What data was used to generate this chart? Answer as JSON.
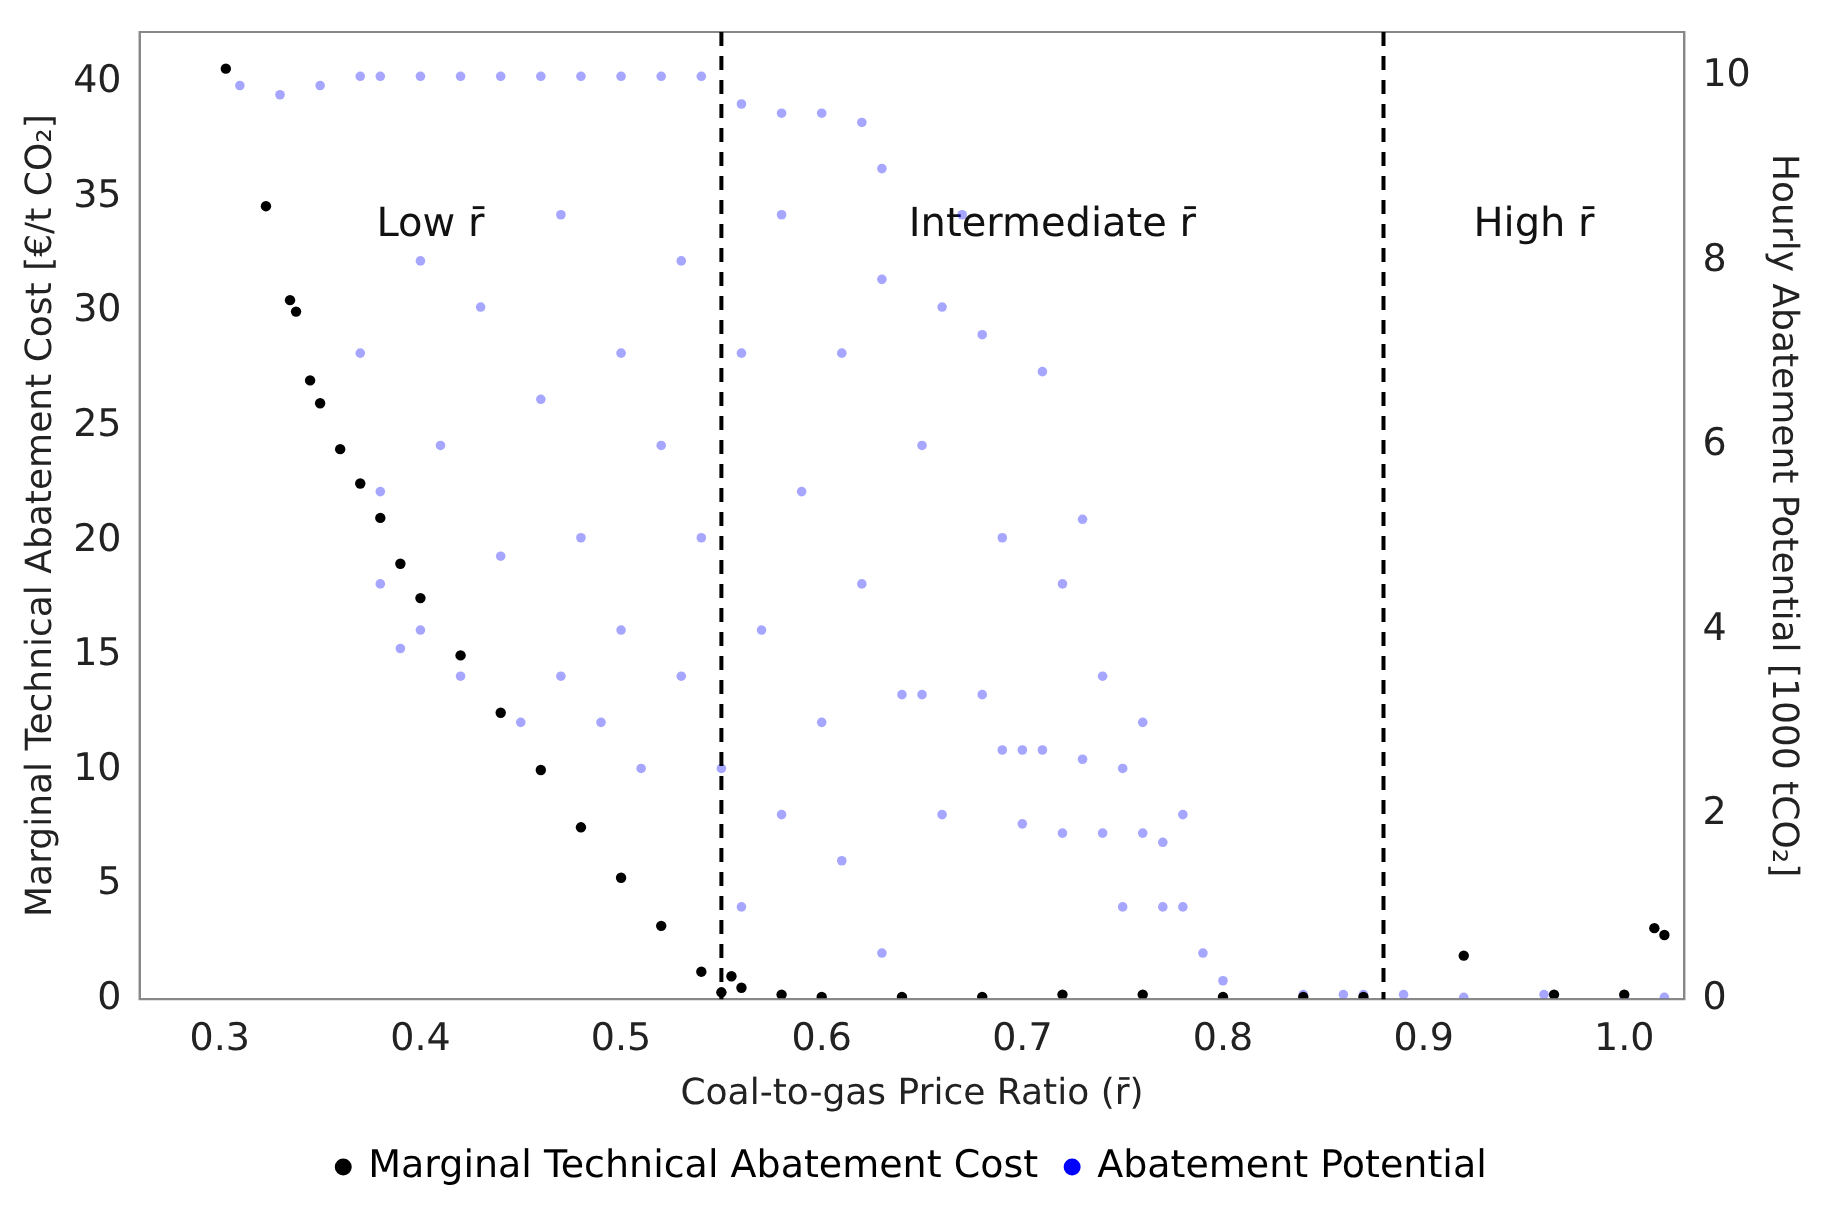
{
  "chart_data": {
    "type": "scatter",
    "xlabel": "Coal-to-gas Price Ratio (r̄)",
    "ylabel": "Marginal Technical Abatement Cost [€/t CO₂]",
    "y2label": "Hourly Abatement Potential [1000 tCO₂]",
    "xlim": [
      0.26,
      1.03
    ],
    "xticks": [
      {
        "value": 0.3,
        "label": "0.3"
      },
      {
        "value": 0.4,
        "label": "0.4"
      },
      {
        "value": 0.5,
        "label": "0.5"
      },
      {
        "value": 0.6,
        "label": "0.6"
      },
      {
        "value": 0.7,
        "label": "0.7"
      },
      {
        "value": 0.8,
        "label": "0.8"
      },
      {
        "value": 0.9,
        "label": "0.9"
      },
      {
        "value": 1.0,
        "label": "1.0"
      }
    ],
    "ylim": [
      0,
      42.2
    ],
    "yticks": [
      0,
      5,
      10,
      15,
      20,
      25,
      30,
      35,
      40
    ],
    "y2lim": [
      0,
      10.48
    ],
    "y2ticks": [
      0,
      2,
      4,
      6,
      8,
      10
    ],
    "grid": false,
    "legend": "bottom",
    "marker": "circle",
    "ref_lines": [
      {
        "axis": "x",
        "value": 0.55,
        "color": "#000000",
        "line_style": "dashed"
      },
      {
        "axis": "x",
        "value": 0.88,
        "color": "#000000",
        "line_style": "dashed"
      }
    ],
    "annotations": [
      "Low r̄",
      "Intermediate r̄",
      "High r̄"
    ],
    "series": [
      {
        "name": "Marginal Technical Abatement Cost",
        "color": "#000000",
        "x": [
          0.303,
          0.323,
          0.335,
          0.338,
          0.345,
          0.35,
          0.36,
          0.37,
          0.38,
          0.39,
          0.4,
          0.42,
          0.44,
          0.46,
          0.48,
          0.5,
          0.52,
          0.54,
          0.55,
          0.555,
          0.56,
          0.58,
          0.6,
          0.64,
          0.68,
          0.72,
          0.76,
          0.8,
          0.84,
          0.87,
          0.92,
          0.965,
          1.0,
          1.015,
          1.02
        ],
        "values": [
          40.6,
          34.6,
          30.5,
          30.0,
          27,
          26,
          24,
          22.5,
          21,
          19,
          17.5,
          15,
          12.5,
          10,
          7.5,
          5.3,
          3.2,
          1.2,
          0.3,
          1.0,
          0.5,
          0.2,
          0.1,
          0.1,
          0.1,
          0.2,
          0.2,
          0.1,
          0.1,
          0.1,
          1.9,
          0.2,
          0.2,
          3.1,
          2.8
        ]
      },
      {
        "name": "Abatement Potential",
        "color": "#0000ff",
        "axis": "y2",
        "x": [
          0.31,
          0.33,
          0.35,
          0.37,
          0.38,
          0.4,
          0.42,
          0.44,
          0.46,
          0.48,
          0.5,
          0.52,
          0.54,
          0.56,
          0.58,
          0.6,
          0.62,
          0.37,
          0.38,
          0.38,
          0.39,
          0.4,
          0.4,
          0.41,
          0.42,
          0.43,
          0.44,
          0.45,
          0.46,
          0.47,
          0.47,
          0.48,
          0.49,
          0.5,
          0.5,
          0.51,
          0.52,
          0.53,
          0.53,
          0.54,
          0.55,
          0.56,
          0.56,
          0.57,
          0.58,
          0.58,
          0.59,
          0.6,
          0.61,
          0.61,
          0.62,
          0.63,
          0.63,
          0.63,
          0.64,
          0.65,
          0.65,
          0.66,
          0.66,
          0.67,
          0.68,
          0.68,
          0.69,
          0.69,
          0.7,
          0.7,
          0.71,
          0.71,
          0.72,
          0.72,
          0.73,
          0.73,
          0.74,
          0.74,
          0.75,
          0.75,
          0.76,
          0.76,
          0.77,
          0.77,
          0.78,
          0.78,
          0.79,
          0.8,
          0.84,
          0.86,
          0.87,
          0.89,
          0.92,
          0.96,
          1.0,
          1.02
        ],
        "values": [
          9.9,
          9.8,
          9.9,
          10,
          10,
          10,
          10,
          10,
          10,
          10,
          10,
          10,
          10,
          9.7,
          9.6,
          9.6,
          9.5,
          7,
          5.5,
          4.5,
          3.8,
          8,
          4,
          6,
          3.5,
          7.5,
          4.8,
          3,
          6.5,
          3.5,
          8.5,
          5,
          3,
          7,
          4,
          2.5,
          6,
          3.5,
          8,
          5,
          2.5,
          7,
          1,
          4,
          8.5,
          2,
          5.5,
          3,
          7,
          1.5,
          4.5,
          9,
          7.8,
          0.5,
          3.3,
          3.3,
          6,
          7.5,
          2,
          8.5,
          7.2,
          3.3,
          2.7,
          5,
          2.7,
          1.9,
          6.8,
          2.7,
          1.8,
          4.5,
          2.6,
          5.2,
          1.8,
          3.5,
          2.5,
          1.0,
          1.8,
          3,
          1.7,
          1.0,
          1.0,
          2,
          0.5,
          0.2,
          0.05,
          0.05,
          0.05,
          0.05,
          0.02,
          0.05,
          0.02,
          0.02
        ]
      }
    ]
  }
}
